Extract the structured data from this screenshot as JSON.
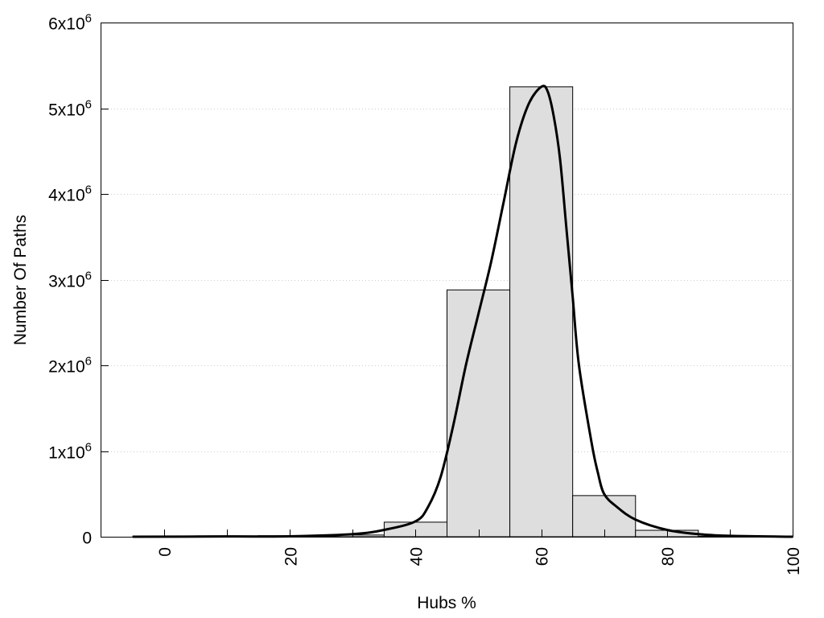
{
  "chart_data": {
    "type": "bar",
    "title": "",
    "xlabel": "Hubs %",
    "ylabel": "Number Of Paths",
    "xlim": [
      -10,
      100
    ],
    "ylim": [
      0,
      6000000
    ],
    "grid": "horizontal dotted",
    "bar_width": 10,
    "bar_color": "#dedede",
    "line_color": "#000000",
    "x_ticks": [
      0,
      20,
      40,
      60,
      80,
      100
    ],
    "x_tick_labels": [
      "0",
      "20",
      "40",
      "60",
      "80",
      "100"
    ],
    "y_ticks": [
      0,
      1000000,
      2000000,
      3000000,
      4000000,
      5000000,
      6000000
    ],
    "y_tick_labels": [
      {
        "base": "0",
        "exp": ""
      },
      {
        "base": "1x10",
        "exp": "6"
      },
      {
        "base": "2x10",
        "exp": "6"
      },
      {
        "base": "3x10",
        "exp": "6"
      },
      {
        "base": "4x10",
        "exp": "6"
      },
      {
        "base": "5x10",
        "exp": "6"
      },
      {
        "base": "6x10",
        "exp": "6"
      }
    ],
    "bars": {
      "x": [
        0,
        10,
        20,
        30,
        40,
        50,
        60,
        70,
        80,
        90
      ],
      "values": [
        8000,
        10000,
        12000,
        20000,
        170000,
        2880000,
        5250000,
        480000,
        75000,
        5000
      ]
    },
    "curve": {
      "x": [
        -5,
        10,
        20,
        30,
        35,
        40,
        42,
        44,
        46,
        48,
        50,
        52,
        54,
        56,
        58,
        60,
        61,
        62,
        63,
        64,
        65,
        66,
        68,
        69,
        70,
        72,
        75,
        80,
        85,
        90,
        100
      ],
      "y": [
        0,
        3000,
        5000,
        30000,
        80000,
        180000,
        350000,
        700000,
        1300000,
        2000000,
        2600000,
        3200000,
        3900000,
        4600000,
        5050000,
        5250000,
        5200000,
        4900000,
        4400000,
        3600000,
        2800000,
        2000000,
        1100000,
        750000,
        500000,
        350000,
        200000,
        80000,
        30000,
        10000,
        0
      ]
    }
  }
}
